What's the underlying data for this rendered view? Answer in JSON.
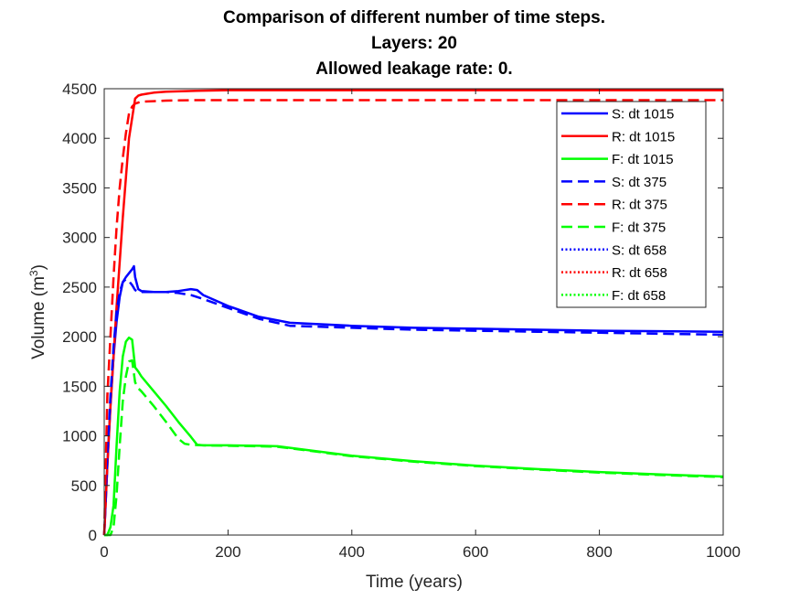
{
  "chart_data": {
    "type": "line",
    "title": [
      "Comparison of different number of time steps.",
      "Layers: 20",
      "Allowed leakage rate: 0."
    ],
    "xlabel": "Time (years)",
    "ylabel_main": "Volume (m",
    "ylabel_sup": "3",
    "ylabel_close": ")",
    "xlim": [
      0,
      1000
    ],
    "ylim": [
      0,
      4500
    ],
    "xticks": [
      "0",
      "200",
      "400",
      "600",
      "800",
      "1000"
    ],
    "yticks": [
      "0",
      "500",
      "1000",
      "1500",
      "2000",
      "2500",
      "3000",
      "3500",
      "4000",
      "4500"
    ],
    "grid": false,
    "legend_position": "top-right",
    "series": [
      {
        "name": "S: dt 1015",
        "color": "#0000ff",
        "style": "solid",
        "x": [
          0,
          5,
          10,
          15,
          20,
          25,
          30,
          35,
          40,
          45,
          48,
          50,
          55,
          60,
          80,
          100,
          120,
          140,
          150,
          160,
          200,
          250,
          300,
          400,
          500,
          600,
          700,
          800,
          900,
          1000
        ],
        "y": [
          0,
          700,
          1300,
          1800,
          2150,
          2400,
          2550,
          2600,
          2640,
          2680,
          2710,
          2600,
          2480,
          2460,
          2450,
          2450,
          2460,
          2480,
          2470,
          2420,
          2310,
          2200,
          2140,
          2110,
          2090,
          2080,
          2070,
          2060,
          2055,
          2050
        ]
      },
      {
        "name": "R: dt 1015",
        "color": "#ff0000",
        "style": "solid",
        "x": [
          0,
          5,
          10,
          20,
          30,
          40,
          50,
          55,
          60,
          70,
          80,
          100,
          150,
          200,
          300,
          500,
          1000
        ],
        "y": [
          0,
          700,
          1300,
          2300,
          3200,
          4000,
          4400,
          4430,
          4440,
          4450,
          4460,
          4470,
          4480,
          4485,
          4485,
          4485,
          4485
        ]
      },
      {
        "name": "F: dt 1015",
        "color": "#00ff00",
        "style": "solid",
        "x": [
          0,
          5,
          10,
          15,
          20,
          25,
          30,
          35,
          40,
          45,
          50,
          55,
          60,
          80,
          100,
          120,
          140,
          150,
          160,
          200,
          250,
          280,
          300,
          400,
          500,
          600,
          700,
          800,
          900,
          1000
        ],
        "y": [
          0,
          0,
          80,
          300,
          900,
          1450,
          1800,
          1950,
          1990,
          1970,
          1690,
          1650,
          1600,
          1450,
          1300,
          1140,
          990,
          910,
          905,
          905,
          900,
          895,
          880,
          800,
          745,
          700,
          665,
          635,
          610,
          590
        ]
      },
      {
        "name": "S: dt 375",
        "color": "#0000ff",
        "style": "dashed",
        "x": [
          0,
          5,
          10,
          15,
          20,
          25,
          30,
          35,
          40,
          45,
          50,
          55,
          60,
          80,
          100,
          120,
          140,
          160,
          200,
          250,
          300,
          400,
          500,
          600,
          700,
          800,
          900,
          1000
        ],
        "y": [
          0,
          800,
          1400,
          1900,
          2250,
          2450,
          2550,
          2580,
          2560,
          2520,
          2470,
          2450,
          2450,
          2450,
          2450,
          2440,
          2420,
          2380,
          2290,
          2180,
          2110,
          2090,
          2070,
          2060,
          2050,
          2040,
          2030,
          2020
        ]
      },
      {
        "name": "R: dt 375",
        "color": "#ff0000",
        "style": "dashed",
        "x": [
          0,
          5,
          10,
          15,
          20,
          25,
          30,
          35,
          40,
          45,
          50,
          55,
          60,
          80,
          100,
          150,
          200,
          300,
          500,
          1000
        ],
        "y": [
          0,
          1400,
          2000,
          2600,
          3100,
          3500,
          3800,
          4050,
          4250,
          4320,
          4350,
          4360,
          4370,
          4375,
          4380,
          4385,
          4385,
          4385,
          4385,
          4385
        ]
      },
      {
        "name": "F: dt 375",
        "color": "#00ff00",
        "style": "dashed",
        "x": [
          0,
          5,
          10,
          15,
          20,
          25,
          30,
          35,
          40,
          45,
          50,
          55,
          60,
          80,
          100,
          120,
          130,
          140,
          160,
          200,
          250,
          280,
          300,
          400,
          500,
          600,
          700,
          800,
          900,
          1000
        ],
        "y": [
          0,
          0,
          0,
          80,
          400,
          900,
          1350,
          1600,
          1750,
          1760,
          1540,
          1480,
          1450,
          1300,
          1140,
          970,
          920,
          910,
          905,
          900,
          895,
          890,
          875,
          795,
          740,
          695,
          660,
          630,
          605,
          585
        ]
      },
      {
        "name": "S: dt 658",
        "color": "#0000ff",
        "style": "dotted",
        "x": [],
        "y": []
      },
      {
        "name": "R: dt 658",
        "color": "#ff0000",
        "style": "dotted",
        "x": [],
        "y": []
      },
      {
        "name": "F: dt 658",
        "color": "#00ff00",
        "style": "dotted",
        "x": [],
        "y": []
      }
    ]
  }
}
